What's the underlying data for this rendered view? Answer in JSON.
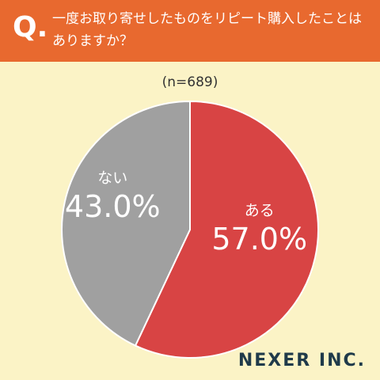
{
  "question_label": "Q.",
  "brand": "NEXER INC.",
  "chart_data": {
    "type": "pie",
    "title": "一度お取り寄せしたものをリピート購入したことはありますか？",
    "subtitle": "(n=689)",
    "categories": [
      "ある",
      "ない"
    ],
    "values": [
      57.0,
      43.0
    ],
    "value_labels": [
      "57.0%",
      "43.0%"
    ],
    "colors": [
      "#d84444",
      "#a0a0a0"
    ]
  }
}
